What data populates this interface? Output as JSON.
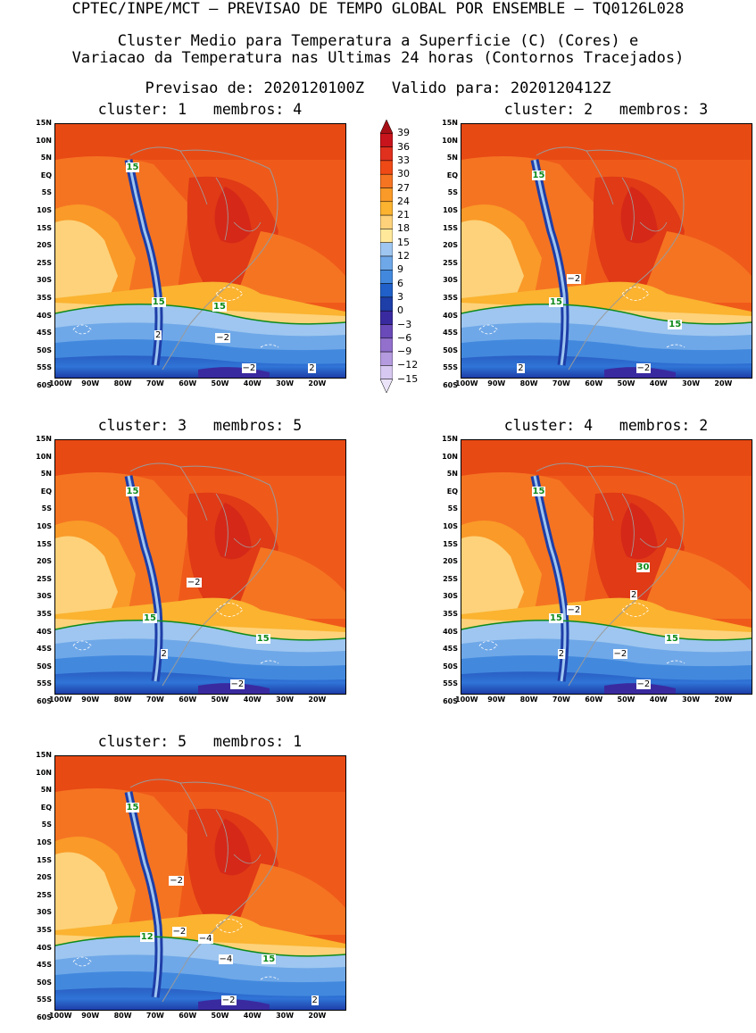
{
  "header": {
    "line1": "CPTEC/INPE/MCT — PREVISAO DE TEMPO GLOBAL POR ENSEMBLE — TQ0126L028",
    "line2": "Cluster Medio para Temperatura a Superficie (C) (Cores) e",
    "line3": "Variacao da Temperatura nas Ultimas 24 horas (Contornos Tracejados)",
    "line4": "Previsao de: 2020120100Z   Valido para: 2020120412Z"
  },
  "lat_labels": [
    "15N",
    "10N",
    "5N",
    "EQ",
    "5S",
    "10S",
    "15S",
    "20S",
    "25S",
    "30S",
    "35S",
    "40S",
    "45S",
    "50S",
    "55S",
    "60S"
  ],
  "lon_labels": [
    "100W",
    "90W",
    "80W",
    "70W",
    "60W",
    "50W",
    "40W",
    "30W",
    "20W"
  ],
  "colorbar": {
    "labels": [
      "39",
      "36",
      "33",
      "30",
      "27",
      "24",
      "21",
      "18",
      "15",
      "12",
      "9",
      "6",
      "3",
      "0",
      "−3",
      "−6",
      "−9",
      "−12",
      "−15"
    ],
    "colors": [
      "#a50f15",
      "#c8141c",
      "#e0301e",
      "#ef4a15",
      "#f57422",
      "#fa9a28",
      "#fbb330",
      "#fdd27a",
      "#ffe89a",
      "#9ec6f0",
      "#6fa8e8",
      "#4289de",
      "#2060c8",
      "#1e3ea8",
      "#3a2aa0",
      "#6a4ab8",
      "#9270cc",
      "#b49ade",
      "#d6c8f0",
      "#ebe4f8"
    ]
  },
  "panels": [
    {
      "title": "cluster: 1   membros: 4",
      "labels": [
        {
          "t": "15",
          "g": true
        },
        {
          "t": "15",
          "g": true
        },
        {
          "t": "15",
          "g": true
        },
        {
          "t": "2",
          "g": false
        },
        {
          "t": "−2",
          "g": false
        },
        {
          "t": "−2",
          "g": false
        },
        {
          "t": "2",
          "g": false
        }
      ]
    },
    {
      "title": "cluster: 2   membros: 3",
      "labels": [
        {
          "t": "15",
          "g": true
        },
        {
          "t": "−2",
          "g": false
        },
        {
          "t": "15",
          "g": true
        },
        {
          "t": "15",
          "g": true
        },
        {
          "t": "−2",
          "g": false
        },
        {
          "t": "2",
          "g": false
        }
      ]
    },
    {
      "title": "cluster: 3   membros: 5",
      "labels": [
        {
          "t": "15",
          "g": true
        },
        {
          "t": "−2",
          "g": false
        },
        {
          "t": "15",
          "g": true
        },
        {
          "t": "15",
          "g": true
        },
        {
          "t": "2",
          "g": false
        },
        {
          "t": "−2",
          "g": false
        }
      ]
    },
    {
      "title": "cluster: 4   membros: 2",
      "labels": [
        {
          "t": "15",
          "g": true
        },
        {
          "t": "30",
          "g": true
        },
        {
          "t": "2",
          "g": false
        },
        {
          "t": "−2",
          "g": false
        },
        {
          "t": "15",
          "g": true
        },
        {
          "t": "15",
          "g": true
        },
        {
          "t": "2",
          "g": false
        },
        {
          "t": "−2",
          "g": false
        },
        {
          "t": "−2",
          "g": false
        }
      ]
    },
    {
      "title": "cluster: 5   membros: 1",
      "labels": [
        {
          "t": "15",
          "g": true
        },
        {
          "t": "−2",
          "g": false
        },
        {
          "t": "−2",
          "g": false
        },
        {
          "t": "−4",
          "g": false
        },
        {
          "t": "12",
          "g": true
        },
        {
          "t": "−4",
          "g": false
        },
        {
          "t": "15",
          "g": true
        },
        {
          "t": "−2",
          "g": false
        },
        {
          "t": "2",
          "g": false
        }
      ]
    }
  ]
}
